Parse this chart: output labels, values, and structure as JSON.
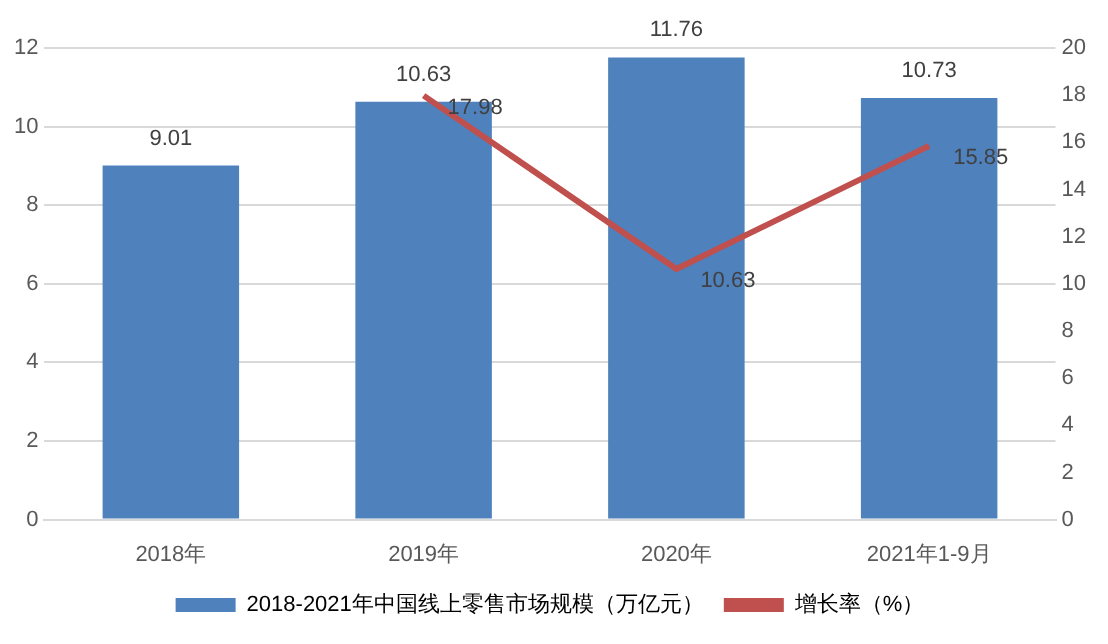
{
  "chart_data": {
    "type": "bar",
    "categories": [
      "2018年",
      "2019年",
      "2020年",
      "2021年1-9月"
    ],
    "series": [
      {
        "name": "2018-2021年中国线上零售市场规模（万亿元）",
        "color": "#4f81bd",
        "values": [
          9.01,
          10.63,
          11.76,
          10.73
        ]
      },
      {
        "name": "增长率（%）",
        "type": "line",
        "axis": "y2",
        "color": "#c0504d",
        "values": [
          null,
          17.98,
          10.63,
          15.85
        ]
      }
    ],
    "ylim": [
      0,
      12
    ],
    "yticks": [
      0,
      2,
      4,
      6,
      8,
      10,
      12
    ],
    "y2lim": [
      0,
      20
    ],
    "y2ticks": [
      0,
      2,
      4,
      6,
      8,
      10,
      12,
      14,
      16,
      18,
      20
    ],
    "grid": "y",
    "legend": "bottom",
    "data_labels": true,
    "marker": "none"
  }
}
